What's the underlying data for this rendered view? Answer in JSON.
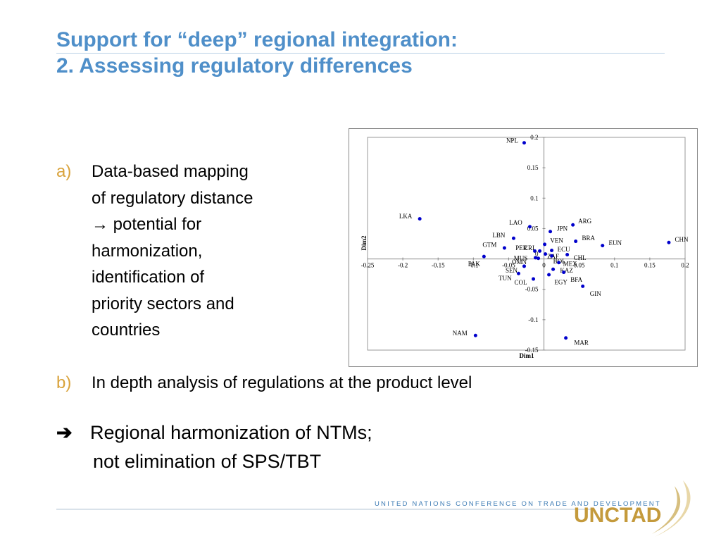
{
  "slide": {
    "title_line1": "Support for “deep” regional integration:",
    "title_line2": "2. Assessing regulatory differences",
    "bullet_a": {
      "marker": "a)",
      "lines": [
        "Data-based mapping",
        "of regulatory distance",
        "→ potential for",
        "harmonization,",
        "identification of",
        "priority sectors and",
        "countries"
      ]
    },
    "bullet_b": {
      "marker": "b)",
      "text": "In depth analysis of regulations at the product level"
    },
    "conclusion": {
      "arrow": "➔",
      "line1": "Regional harmonization of NTMs;",
      "line2": "not elimination of SPS/TBT"
    },
    "footer": {
      "organization": "UNITED NATIONS CONFERENCE ON TRADE AND DEVELOPMENT",
      "logo_text": "UNCTAD"
    }
  },
  "chart_data": {
    "type": "scatter",
    "xlabel": "Dim1",
    "ylabel": "Dim2",
    "xlim": [
      -0.25,
      0.2
    ],
    "ylim": [
      -0.15,
      0.2
    ],
    "x_ticks": [
      -0.25,
      -0.2,
      -0.15,
      -0.1,
      -0.05,
      0,
      0.05,
      0.1,
      0.15,
      0.2
    ],
    "x_tick_labels": [
      "-0.25",
      "-0.2",
      "-0.15",
      "-0.1",
      "-0.05",
      "0",
      "0.05",
      "0.1",
      "0.15",
      "0.2"
    ],
    "y_ticks": [
      -0.15,
      -0.1,
      -0.05,
      0.05,
      0.1,
      0.15,
      0.2
    ],
    "y_tick_labels": [
      "-0.15",
      "-0.1",
      "-0.05",
      "0.05",
      "0.1",
      "0.15",
      "0.2"
    ],
    "zero_label": "0",
    "marker_color": "#0000cc",
    "points": [
      {
        "label": "NPL",
        "x": -0.028,
        "y": 0.191,
        "lx": -0.045,
        "ly": 0.195
      },
      {
        "label": "LKA",
        "x": -0.176,
        "y": 0.066,
        "lx": -0.196,
        "ly": 0.07
      },
      {
        "label": "LAO",
        "x": -0.02,
        "y": 0.053,
        "lx": -0.04,
        "ly": 0.06
      },
      {
        "label": "ARG",
        "x": 0.041,
        "y": 0.056,
        "lx": 0.058,
        "ly": 0.062
      },
      {
        "label": "JPN",
        "x": 0.009,
        "y": 0.045,
        "lx": 0.026,
        "ly": 0.05
      },
      {
        "label": "LBN",
        "x": -0.043,
        "y": 0.034,
        "lx": -0.064,
        "ly": 0.039
      },
      {
        "label": "BRA",
        "x": 0.045,
        "y": 0.029,
        "lx": 0.063,
        "ly": 0.034
      },
      {
        "label": "VEN",
        "x": 0.001,
        "y": 0.024,
        "lx": 0.018,
        "ly": 0.03
      },
      {
        "label": "EUN",
        "x": 0.083,
        "y": 0.022,
        "lx": 0.101,
        "ly": 0.026
      },
      {
        "label": "CHN",
        "x": 0.177,
        "y": 0.027,
        "lx": 0.195,
        "ly": 0.032
      },
      {
        "label": "GTM",
        "x": -0.056,
        "y": 0.018,
        "lx": -0.077,
        "ly": 0.023
      },
      {
        "label": "PER",
        "x": -0.013,
        "y": 0.013,
        "lx": -0.032,
        "ly": 0.018
      },
      {
        "label": "CRI",
        "x": -0.006,
        "y": 0.013,
        "lx": -0.021,
        "ly": 0.018
      },
      {
        "label": "ECU",
        "x": 0.011,
        "y": 0.014,
        "lx": 0.028,
        "ly": 0.016
      },
      {
        "label": "PAK",
        "x": -0.085,
        "y": 0.004,
        "lx": -0.099,
        "ly": -0.008
      },
      {
        "label": "MUS",
        "x": -0.012,
        "y": 0.002,
        "lx": -0.033,
        "ly": 0.001
      },
      {
        "label": "OMN",
        "x": -0.008,
        "y": 0.001,
        "lx": -0.035,
        "ly": -0.005
      },
      {
        "label": "ZAF",
        "x": 0.002,
        "y": 0.008,
        "lx": 0.013,
        "ly": 0.004
      },
      {
        "label": "BOL",
        "x": 0.011,
        "y": 0.005,
        "lx": 0.022,
        "ly": -0.004
      },
      {
        "label": "CHL",
        "x": 0.033,
        "y": 0.007,
        "lx": 0.051,
        "ly": 0.002
      },
      {
        "label": "MEX",
        "x": 0.021,
        "y": -0.006,
        "lx": 0.037,
        "ly": -0.008
      },
      {
        "label": "KAZ",
        "x": 0.013,
        "y": -0.017,
        "lx": 0.032,
        "ly": -0.019
      },
      {
        "label": "SEN",
        "x": -0.028,
        "y": -0.012,
        "lx": -0.046,
        "ly": -0.019
      },
      {
        "label": "TUN",
        "x": -0.036,
        "y": -0.024,
        "lx": -0.055,
        "ly": -0.032
      },
      {
        "label": "COL",
        "x": -0.015,
        "y": -0.033,
        "lx": -0.033,
        "ly": -0.039
      },
      {
        "label": "EGY",
        "x": 0.007,
        "y": -0.026,
        "lx": 0.024,
        "ly": -0.038
      },
      {
        "label": "BFA",
        "x": 0.028,
        "y": -0.022,
        "lx": 0.046,
        "ly": -0.034
      },
      {
        "label": "GIN",
        "x": 0.055,
        "y": -0.045,
        "lx": 0.073,
        "ly": -0.057
      },
      {
        "label": "NAM",
        "x": -0.097,
        "y": -0.126,
        "lx": -0.119,
        "ly": -0.122
      },
      {
        "label": "MAR",
        "x": 0.031,
        "y": -0.13,
        "lx": 0.053,
        "ly": -0.138
      }
    ]
  }
}
